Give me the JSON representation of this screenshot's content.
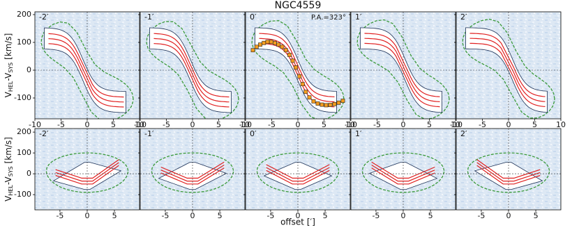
{
  "chart_data": {
    "type": "pv-grid",
    "title": "NGC4559",
    "x_label": "offset [′]",
    "y_label": {
      "v1": "V",
      "sub1": "HEL",
      "v2": "-V",
      "sub2": "SYS",
      "unit": " [km/s]"
    },
    "rows": [
      {
        "shape": "tilted",
        "xlim": [
          -10,
          10
        ],
        "xticks": [
          -10,
          -5,
          0,
          5,
          10
        ],
        "ylim": [
          -175,
          210
        ],
        "yticks": [
          -100,
          0,
          100,
          200
        ],
        "panels": [
          {
            "label": "-2′"
          },
          {
            "label": "-1′"
          },
          {
            "label": "0′",
            "annotation": "P.A.=323°",
            "color": "#f39c1f",
            "x": [
              -8.6,
              -7.9,
              -7.2,
              -6.5,
              -5.8,
              -5.1,
              -4.4,
              -3.7,
              -3.0,
              -2.3,
              -1.6,
              -1.0,
              -0.4,
              0.3,
              0.9,
              1.5,
              2.2,
              3.0,
              3.8,
              4.6,
              5.4,
              6.2,
              7.0,
              7.8,
              8.6
            ],
            "values": [
              72,
              84,
              92,
              98,
              102,
              102,
              98,
              92,
              84,
              72,
              55,
              34,
              10,
              -22,
              -50,
              -78,
              -98,
              -112,
              -120,
              -124,
              -126,
              -125,
              -122,
              -117,
              -110
            ]
          },
          {
            "label": "1′"
          },
          {
            "label": "2′"
          }
        ]
      },
      {
        "shape": "flat",
        "xlim": [
          -9.6,
          9.6
        ],
        "xticks": [
          -5,
          0,
          5
        ],
        "ylim": [
          -173,
          217
        ],
        "yticks": [
          -100,
          0,
          100,
          200
        ],
        "panels": [
          {
            "label": "-2′"
          },
          {
            "label": "-1′"
          },
          {
            "label": "0′"
          },
          {
            "label": "1′"
          },
          {
            "label": "2′"
          }
        ]
      }
    ]
  }
}
